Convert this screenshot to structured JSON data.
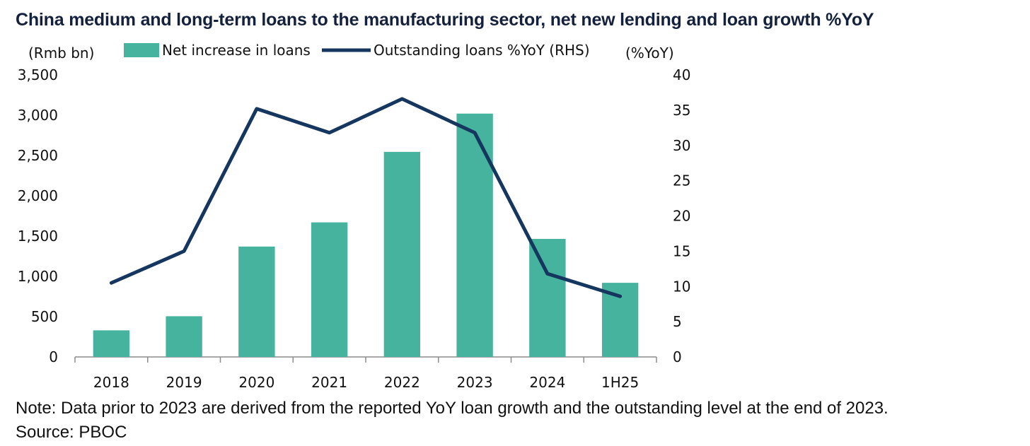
{
  "chart_data": {
    "type": "bar-line",
    "title": "China medium and long-term loans to the manufacturing sector, net new lending and loan growth %YoY",
    "categories": [
      "2018",
      "2019",
      "2020",
      "2021",
      "2022",
      "2023",
      "2024",
      "1H25"
    ],
    "series": [
      {
        "name": "Net increase in loans",
        "type": "bar",
        "axis": "left",
        "color": "#45b39d",
        "values": [
          330,
          505,
          1370,
          1670,
          2545,
          3020,
          1465,
          920
        ]
      },
      {
        "name": "Outstanding loans %YoY (RHS)",
        "type": "line",
        "axis": "right",
        "color": "#14365f",
        "values": [
          10.5,
          15.0,
          35.2,
          31.8,
          36.6,
          31.8,
          11.8,
          8.6
        ]
      }
    ],
    "y_left": {
      "label": "(Rmb bn)",
      "min": 0,
      "max": 3500,
      "step": 500,
      "ticks": [
        "0",
        "500",
        "1,000",
        "1,500",
        "2,000",
        "2,500",
        "3,000",
        "3,500"
      ]
    },
    "y_right": {
      "label": "(%YoY)",
      "min": 0,
      "max": 40,
      "step": 5,
      "ticks": [
        "0",
        "5",
        "10",
        "15",
        "20",
        "25",
        "30",
        "35",
        "40"
      ]
    },
    "legend_position": "top",
    "grid": false
  },
  "note": "Note: Data prior to 2023 are derived from the reported YoY loan growth and the outstanding level at the end of 2023.",
  "source": "Source: PBOC"
}
